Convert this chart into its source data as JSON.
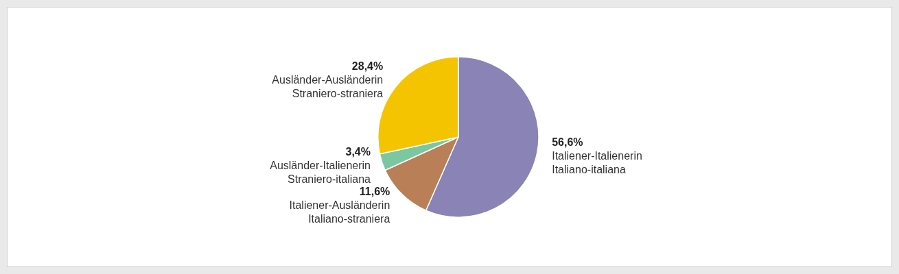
{
  "chart_data": {
    "type": "pie",
    "categories": [
      "Italiener-Italienerin\nItaliano-italiana",
      "Italiener-Ausländerin\nItaliano-straniera",
      "Ausländer-Italienerin\nStraniero-italiana",
      "Ausländer-Ausländerin\nStraniero-straniera"
    ],
    "values": [
      56.6,
      11.6,
      3.4,
      28.4
    ],
    "value_labels": [
      "56,6%",
      "11,6%",
      "3,4%",
      "28,4%"
    ],
    "colors": [
      "#8a83b5",
      "#b98058",
      "#7bc7a0",
      "#f4c400"
    ],
    "legend": false
  }
}
